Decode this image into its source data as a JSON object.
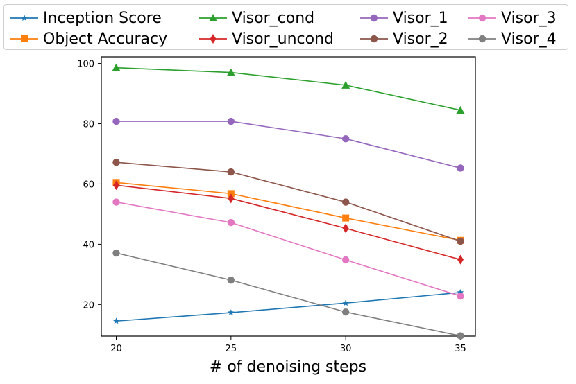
{
  "chart_data": {
    "type": "line",
    "title": "",
    "xlabel": "# of denoising steps",
    "ylabel": "",
    "x": [
      20,
      25,
      30,
      35
    ],
    "xlim": [
      19.35,
      35.65
    ],
    "ylim": [
      9.5,
      102.2
    ],
    "xticks": [
      20,
      25,
      30,
      35
    ],
    "yticks": [
      20,
      40,
      60,
      80,
      100
    ],
    "legend_position": "top",
    "series": [
      {
        "name": "Inception Score",
        "values": [
          14.5,
          17.3,
          20.5,
          24.0
        ],
        "color": "#1f77b4",
        "marker": "star"
      },
      {
        "name": "Object Accuracy",
        "values": [
          60.5,
          56.8,
          48.7,
          41.3
        ],
        "color": "#ff7f0e",
        "marker": "square"
      },
      {
        "name": "Visor_cond",
        "values": [
          98.6,
          97.0,
          92.8,
          84.5
        ],
        "color": "#2ca02c",
        "marker": "triangle"
      },
      {
        "name": "Visor_uncond",
        "values": [
          59.6,
          55.2,
          45.3,
          34.9
        ],
        "color": "#d62728",
        "marker": "diamond"
      },
      {
        "name": "Visor_1",
        "values": [
          80.8,
          80.8,
          75.0,
          65.3
        ],
        "color": "#9467bd",
        "marker": "circle"
      },
      {
        "name": "Visor_2",
        "values": [
          67.2,
          64.0,
          54.0,
          41.0
        ],
        "color": "#8c564b",
        "marker": "circle"
      },
      {
        "name": "Visor_3",
        "values": [
          54.0,
          47.2,
          34.8,
          22.8
        ],
        "color": "#e377c2",
        "marker": "circle"
      },
      {
        "name": "Visor_4",
        "values": [
          37.1,
          28.1,
          17.5,
          9.6
        ],
        "color": "#7f7f7f",
        "marker": "circle"
      }
    ]
  }
}
